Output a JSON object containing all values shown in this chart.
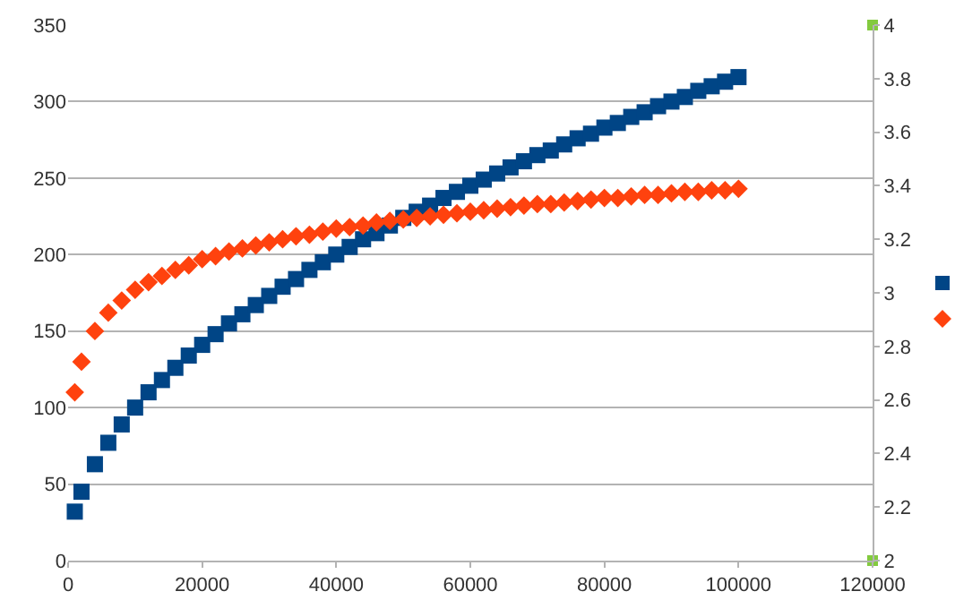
{
  "chart_data": {
    "type": "scatter",
    "x": [
      1000,
      2000,
      4000,
      6000,
      8000,
      10000,
      12000,
      14000,
      16000,
      18000,
      20000,
      22000,
      24000,
      26000,
      28000,
      30000,
      32000,
      34000,
      36000,
      38000,
      40000,
      42000,
      44000,
      46000,
      48000,
      50000,
      52000,
      54000,
      56000,
      58000,
      60000,
      62000,
      64000,
      66000,
      68000,
      70000,
      72000,
      74000,
      76000,
      78000,
      80000,
      82000,
      84000,
      86000,
      88000,
      90000,
      92000,
      94000,
      96000,
      98000,
      100000
    ],
    "series": [
      {
        "color": "#004586",
        "marker": "square",
        "values": [
          32,
          45,
          63,
          77,
          89,
          100,
          110,
          118,
          126,
          134,
          141,
          148,
          155,
          161,
          167,
          173,
          179,
          184,
          190,
          195,
          200,
          205,
          210,
          214,
          219,
          224,
          228,
          232,
          237,
          241,
          245,
          249,
          253,
          257,
          261,
          265,
          268,
          272,
          276,
          279,
          283,
          286,
          290,
          293,
          297,
          300,
          303,
          307,
          310,
          313,
          316
        ]
      },
      {
        "color": "#ff420e",
        "marker": "diamond",
        "values": [
          110,
          130,
          150,
          162,
          170,
          177,
          182,
          186,
          190,
          193,
          197,
          199,
          202,
          204,
          206,
          208,
          210,
          212,
          213,
          215,
          217,
          218,
          219,
          221,
          222,
          223,
          224,
          225,
          226,
          227,
          228,
          229,
          230,
          231,
          232,
          233,
          233,
          234,
          235,
          236,
          237,
          237,
          238,
          239,
          239,
          240,
          241,
          241,
          242,
          242,
          243
        ]
      },
      {
        "color": "#83ca3f",
        "marker": "square",
        "axis": "y2",
        "x": [
          120000,
          120000
        ],
        "values": [
          4,
          2
        ]
      }
    ],
    "xlim": [
      0,
      120000
    ],
    "xticks": [
      0,
      20000,
      40000,
      60000,
      80000,
      100000,
      120000
    ],
    "ylim": [
      0,
      350
    ],
    "yticks": [
      0,
      50,
      100,
      150,
      200,
      250,
      300,
      350
    ],
    "y2lim": [
      2,
      4
    ],
    "y2ticks": [
      2,
      2.2,
      2.4,
      2.6,
      2.8,
      3,
      3.2,
      3.4,
      3.6,
      3.8,
      4
    ],
    "grid": "y"
  }
}
